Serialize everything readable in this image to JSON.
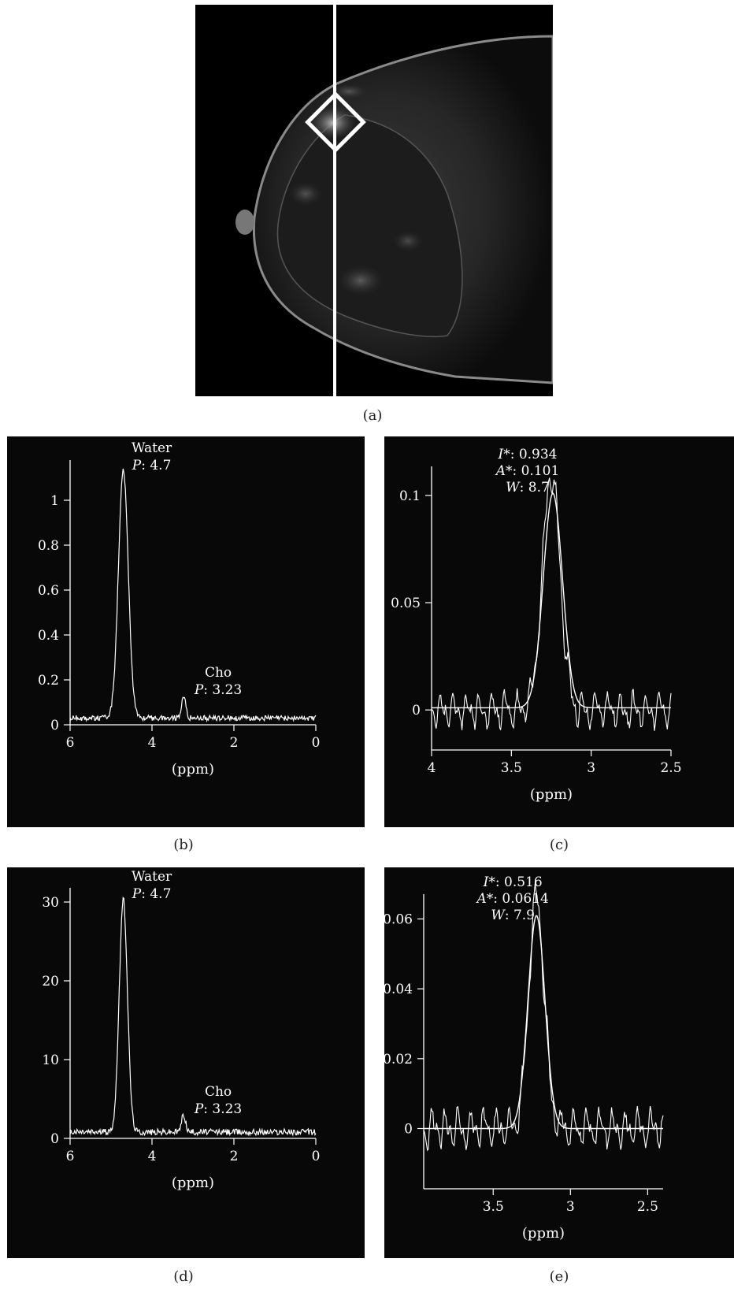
{
  "figure": {
    "captions": {
      "a": "(a)",
      "b": "(b)",
      "c": "(c)",
      "d": "(d)",
      "e": "(e)"
    },
    "image_a": {
      "content": "breast MRI sagittal slice with vertical line and diamond voxel marker"
    }
  },
  "chart_data": [
    {
      "id": "b",
      "type": "line",
      "xlabel": "(ppm)",
      "ylabel": "",
      "xlim": [
        6,
        0
      ],
      "ylim": [
        0,
        1.2
      ],
      "x_ticks": [
        6,
        4,
        2,
        0
      ],
      "x_tick_labels": [
        "6",
        "4",
        "2",
        "0"
      ],
      "y_ticks": [
        0,
        0.2,
        0.4,
        0.6,
        0.8,
        1
      ],
      "y_tick_labels": [
        "0",
        "0.2",
        "0.4",
        "0.6",
        "0.8",
        "1"
      ],
      "peaks": [
        {
          "x": 4.7,
          "y": 1.13,
          "width": 0.12,
          "name": "Water",
          "label": "P: 4.7",
          "prefix": "P",
          "value": "4.7"
        },
        {
          "x": 3.23,
          "y": 0.13,
          "width": 0.05,
          "name": "Cho",
          "label": "P: 3.23",
          "prefix": "P",
          "value": "3.23"
        }
      ],
      "baseline": 0.03,
      "noise": 0.012
    },
    {
      "id": "c",
      "type": "line",
      "xlabel": "(ppm)",
      "ylabel": "",
      "xlim": [
        4,
        2.5
      ],
      "ylim": [
        -0.015,
        0.115
      ],
      "x_ticks": [
        4,
        3.5,
        3,
        2.5
      ],
      "x_tick_labels": [
        "4",
        "3.5",
        "3",
        "2.5"
      ],
      "y_ticks": [
        0,
        0.05,
        0.1
      ],
      "y_tick_labels": [
        "0",
        "0.05",
        "0.1"
      ],
      "annotations": [
        {
          "key": "I*",
          "value": ": 0.934"
        },
        {
          "key": "A*",
          "value": ": 0.101"
        },
        {
          "key": "W",
          "value": ": 8.7"
        }
      ],
      "series": [
        {
          "kind": "measured",
          "peak_x": 3.25,
          "peak_y": 0.11,
          "width": 0.055,
          "noise": 0.009
        },
        {
          "kind": "fit",
          "peak_x": 3.24,
          "peak_y": 0.101,
          "width": 0.06,
          "baseline": 0.001
        }
      ]
    },
    {
      "id": "d",
      "type": "line",
      "xlabel": "(ppm)",
      "ylabel": "",
      "xlim": [
        6,
        0
      ],
      "ylim": [
        0,
        32
      ],
      "x_ticks": [
        6,
        4,
        2,
        0
      ],
      "x_tick_labels": [
        "6",
        "4",
        "2",
        "0"
      ],
      "y_ticks": [
        0,
        10,
        20,
        30
      ],
      "y_tick_labels": [
        "0",
        "10",
        "20",
        "30"
      ],
      "peaks": [
        {
          "x": 4.7,
          "y": 30.3,
          "width": 0.1,
          "name": "Water",
          "label": "P: 4.7",
          "prefix": "P",
          "value": "4.7"
        },
        {
          "x": 3.23,
          "y": 3.0,
          "width": 0.05,
          "name": "Cho",
          "label": "P: 3.23",
          "prefix": "P",
          "value": "3.23"
        }
      ],
      "baseline": 0.8,
      "noise": 0.4
    },
    {
      "id": "e",
      "type": "line",
      "xlabel": "(ppm)",
      "ylabel": "",
      "xlim": [
        3.95,
        2.4
      ],
      "ylim": [
        -0.015,
        0.068
      ],
      "x_ticks": [
        3.5,
        3,
        2.5
      ],
      "x_tick_labels": [
        "3.5",
        "3",
        "2.5"
      ],
      "y_ticks": [
        0,
        0.02,
        0.04,
        0.06
      ],
      "y_tick_labels": [
        "0",
        "0.02",
        "0.04",
        "0.06"
      ],
      "annotations": [
        {
          "key": "I*",
          "value": ": 0.516"
        },
        {
          "key": "A*",
          "value": ": 0.0614"
        },
        {
          "key": "W",
          "value": ": 7.9"
        }
      ],
      "series": [
        {
          "kind": "measured",
          "peak_x": 3.22,
          "peak_y": 0.066,
          "width": 0.05,
          "noise": 0.006
        },
        {
          "kind": "fit",
          "peak_x": 3.22,
          "peak_y": 0.061,
          "width": 0.055,
          "baseline": 0.0
        }
      ]
    }
  ]
}
